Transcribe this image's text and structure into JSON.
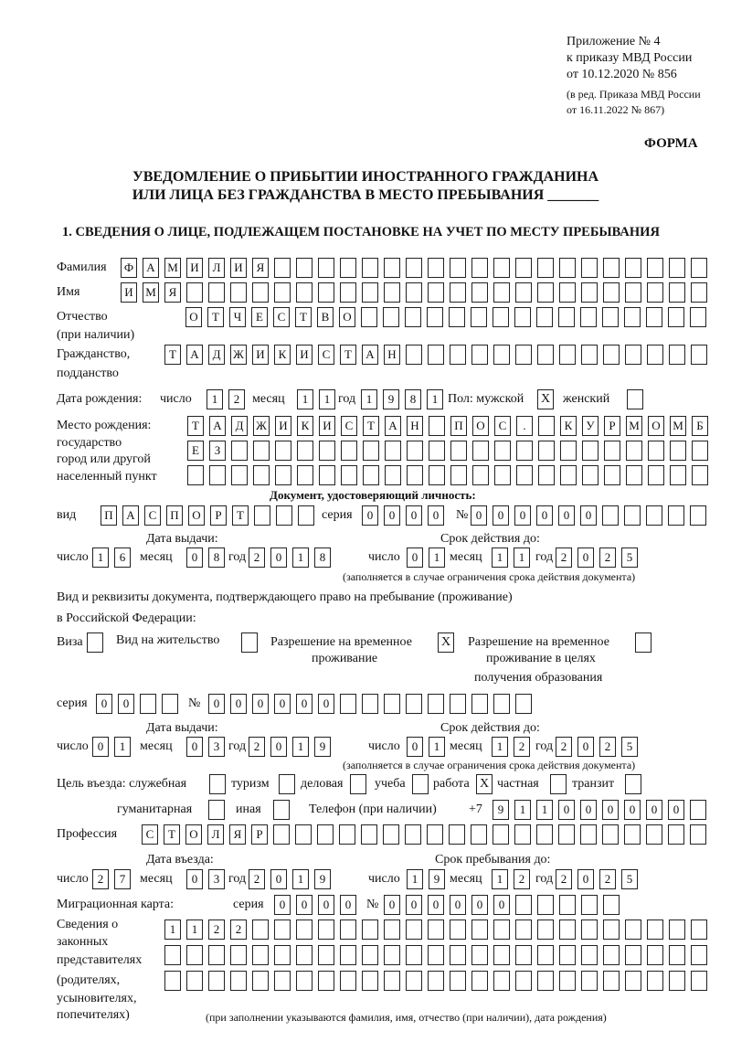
{
  "header": {
    "appendix": "Приложение № 4",
    "order": "к приказу МВД России",
    "order_date": "от 10.12.2020 № 856",
    "amend_1": "(в ред. Приказа МВД России",
    "amend_2": "от 16.11.2022 № 867)",
    "form_label": "ФОРМА",
    "title_1": "УВЕДОМЛЕНИЕ О ПРИБЫТИИ ИНОСТРАННОГО ГРАЖДАНИНА",
    "title_2": "ИЛИ ЛИЦА БЕЗ ГРАЖДАНСТВА В МЕСТО ПРЕБЫВАНИЯ _______",
    "section_1": "1. СВЕДЕНИЯ О ЛИЦЕ, ПОДЛЕЖАЩЕМ ПОСТАНОВКЕ НА УЧЕТ ПО МЕСТУ ПРЕБЫВАНИЯ"
  },
  "labels": {
    "surname": "Фамилия",
    "name": "Имя",
    "patronymic_1": "Отчество",
    "patronymic_2": "(при наличии)",
    "citizenship_1": "Гражданство,",
    "citizenship_2": "подданство",
    "birth_date": "Дата рождения:",
    "day": "число",
    "month": "месяц",
    "year": "год",
    "sex_male": "Пол: мужской",
    "sex_female": "женский",
    "birthplace_1": "Место рождения:",
    "birthplace_2": "государство",
    "birthplace_3": "город или другой",
    "birthplace_4": "населенный пункт",
    "id_doc": "Документ, удостоверяющий личность:",
    "kind": "вид",
    "series": "серия",
    "number": "№",
    "issue_date": "Дата выдачи:",
    "valid_until": "Срок действия до:",
    "validity_note": "(заполняется в случае ограничения срока действия документа)",
    "right_doc_1": "Вид и реквизиты документа, подтверждающего право на пребывание (проживание)",
    "right_doc_2": "в Российской Федерации:",
    "visa": "Виза",
    "residence_permit": "Вид на жительство",
    "temp_residence_1": "Разрешение на временное",
    "temp_residence_2": "проживание",
    "temp_edu_1": "Разрешение на временное",
    "temp_edu_2": "проживание в целях",
    "temp_edu_3": "получения образования",
    "purpose": "Цель въезда: служебная",
    "tourism": "туризм",
    "business": "деловая",
    "study": "учеба",
    "work": "работа",
    "private": "частная",
    "transit": "транзит",
    "humanitarian": "гуманитарная",
    "other": "иная",
    "phone": "Телефон (при наличии)",
    "phone_prefix": "+7",
    "profession": "Профессия",
    "entry_date": "Дата въезда:",
    "stay_until": "Срок пребывания до:",
    "migration_card": "Миграционная карта:",
    "legal_1": "Сведения о",
    "legal_2": "законных",
    "legal_3": "представителях",
    "legal_4": "(родителях,",
    "legal_5": "усыновителях,",
    "legal_6": "попечителях)",
    "legal_note": "(при заполнении указываются фамилия, имя, отчество (при наличии), дата рождения)"
  },
  "values": {
    "surname": "ФАМИЛИЯ",
    "name": "ИМЯ",
    "patronymic": "ОТЧЕСТВО",
    "citizenship": "ТАДЖИКИСТАН",
    "birth_date": {
      "day": "12",
      "month": "11",
      "year": "1981"
    },
    "sex_male": true,
    "sex_female": false,
    "birthplace_1": "ТАДЖИКИСТАН ПОС. КУРМОМБ",
    "birthplace_2": "ЕЗ",
    "birthplace_3": "",
    "id_doc": {
      "kind": "ПАСПОРТ",
      "series": "0000",
      "number": "000000",
      "issue_date": {
        "day": "16",
        "month": "08",
        "year": "2018"
      },
      "valid_until": {
        "day": "01",
        "month": "11",
        "year": "2025"
      }
    },
    "right_doc": {
      "visa": false,
      "residence_permit": false,
      "temp_residence": true,
      "temp_edu": false,
      "series": "00",
      "number": "000000",
      "issue_date": {
        "day": "01",
        "month": "03",
        "year": "2019"
      },
      "valid_until": {
        "day": "01",
        "month": "12",
        "year": "2025"
      }
    },
    "purpose": {
      "official": false,
      "tourism": false,
      "business": false,
      "study": false,
      "work": true,
      "private": false,
      "transit": false,
      "humanitarian": false,
      "other": false
    },
    "phone": "911000000",
    "profession": "СТОЛЯР",
    "entry_date": {
      "day": "27",
      "month": "03",
      "year": "2019"
    },
    "stay_until": {
      "day": "19",
      "month": "12",
      "year": "2025"
    },
    "migration_card": {
      "series": "0000",
      "number": "000000"
    },
    "legal_1": "1122",
    "legal_2": "",
    "legal_3": ""
  }
}
